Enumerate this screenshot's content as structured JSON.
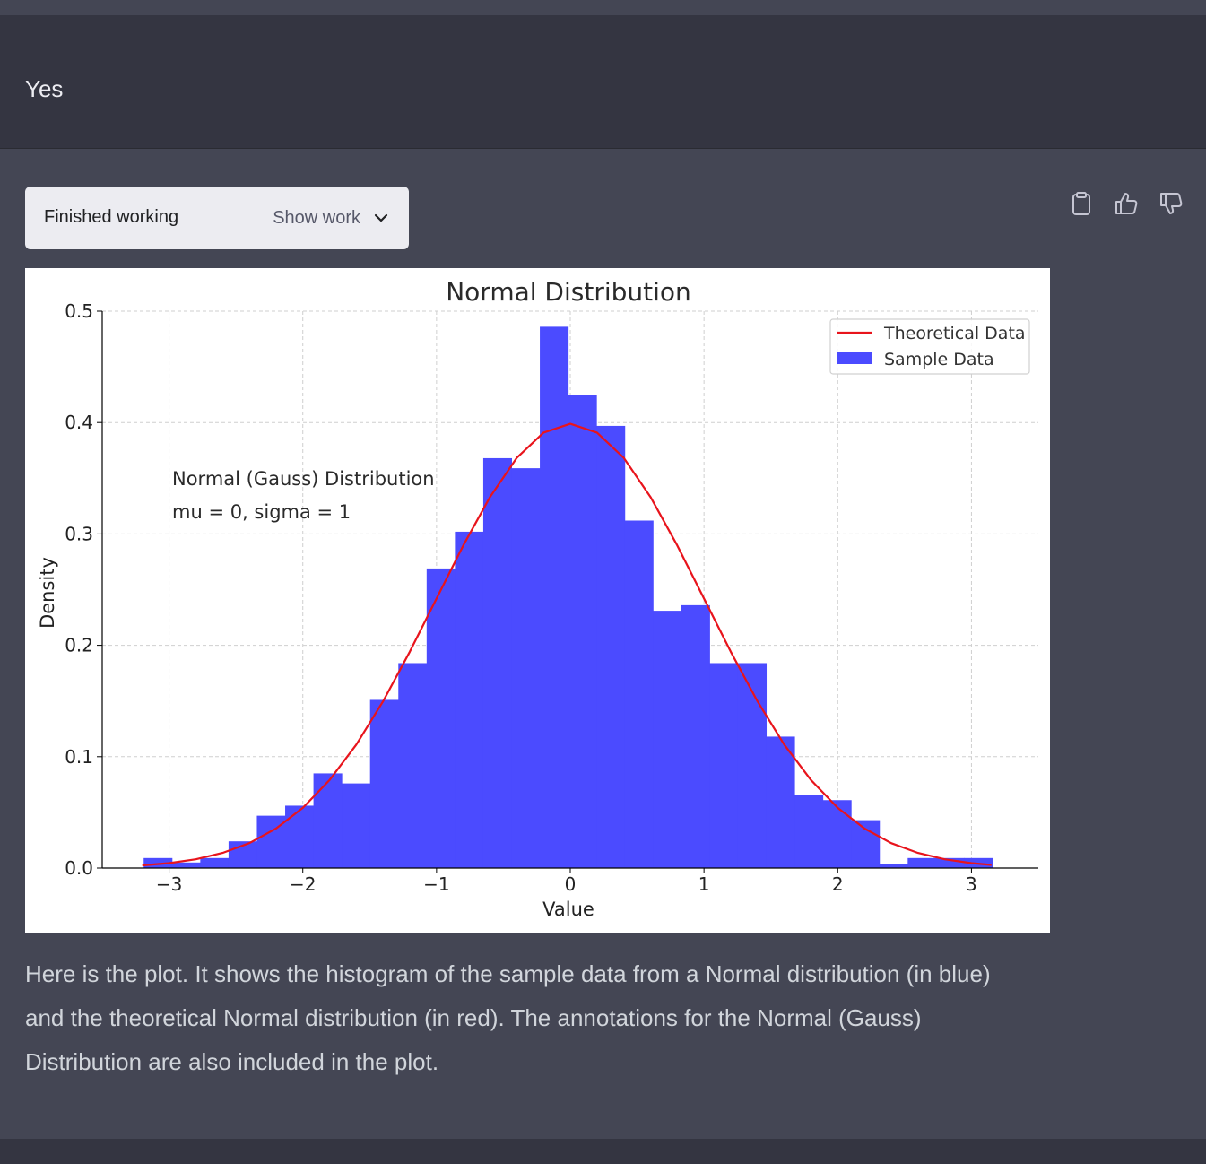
{
  "user_message": {
    "text": "Yes"
  },
  "work_panel": {
    "status": "Finished working",
    "toggle_label": "Show work"
  },
  "actions": {
    "copy_icon": "clipboard-icon",
    "like_icon": "thumbs-up-icon",
    "dislike_icon": "thumbs-down-icon"
  },
  "chart_data": {
    "type": "bar",
    "title": "Normal Distribution",
    "xlabel": "Value",
    "ylabel": "Density",
    "xlim": [
      -3.5,
      3.5
    ],
    "ylim": [
      0,
      0.5
    ],
    "xticks": [
      -3,
      -2,
      -1,
      0,
      1,
      2,
      3
    ],
    "xtick_labels": [
      "−3",
      "−2",
      "−1",
      "0",
      "1",
      "2",
      "3"
    ],
    "yticks": [
      0,
      0.1,
      0.2,
      0.3,
      0.4,
      0.5
    ],
    "ytick_labels": [
      "0.0",
      "0.1",
      "0.2",
      "0.3",
      "0.4",
      "0.5"
    ],
    "grid": true,
    "legend_position": "top-right",
    "annotation": [
      "Normal (Gauss) Distribution",
      "mu = 0, sigma = 1"
    ],
    "colors": {
      "bars": "#4b4bff",
      "curve": "#e8141c"
    },
    "series": [
      {
        "name": "Sample Data",
        "kind": "histogram",
        "bin_start": -3.19,
        "bin_width": 0.2116,
        "values": [
          0.009,
          0.005,
          0.009,
          0.024,
          0.047,
          0.056,
          0.085,
          0.076,
          0.151,
          0.184,
          0.269,
          0.302,
          0.368,
          0.359,
          0.486,
          0.425,
          0.397,
          0.312,
          0.231,
          0.236,
          0.184,
          0.184,
          0.118,
          0.066,
          0.061,
          0.043,
          0.004,
          0.009,
          0.009,
          0.009
        ]
      },
      {
        "name": "Theoretical Data",
        "kind": "line",
        "x": [
          -3.2,
          -3.0,
          -2.8,
          -2.6,
          -2.4,
          -2.2,
          -2.0,
          -1.8,
          -1.6,
          -1.4,
          -1.2,
          -1.0,
          -0.8,
          -0.6,
          -0.4,
          -0.2,
          0.0,
          0.2,
          0.4,
          0.6,
          0.8,
          1.0,
          1.2,
          1.4,
          1.6,
          1.8,
          2.0,
          2.2,
          2.4,
          2.6,
          2.8,
          3.0,
          3.15
        ],
        "y": [
          0.0024,
          0.0044,
          0.0079,
          0.0136,
          0.0224,
          0.0355,
          0.054,
          0.079,
          0.1109,
          0.1497,
          0.1942,
          0.242,
          0.2897,
          0.3332,
          0.3683,
          0.391,
          0.3989,
          0.391,
          0.3683,
          0.3332,
          0.2897,
          0.242,
          0.1942,
          0.1497,
          0.1109,
          0.079,
          0.054,
          0.0355,
          0.0224,
          0.0136,
          0.0079,
          0.0044,
          0.0028
        ]
      }
    ]
  },
  "reply": {
    "text": "Here is the plot. It shows the histogram of the sample data from a Normal distribution (in blue) and the theoretical Normal distribution (in red). The annotations for the Normal (Gauss) Distribution are also included in the plot."
  }
}
